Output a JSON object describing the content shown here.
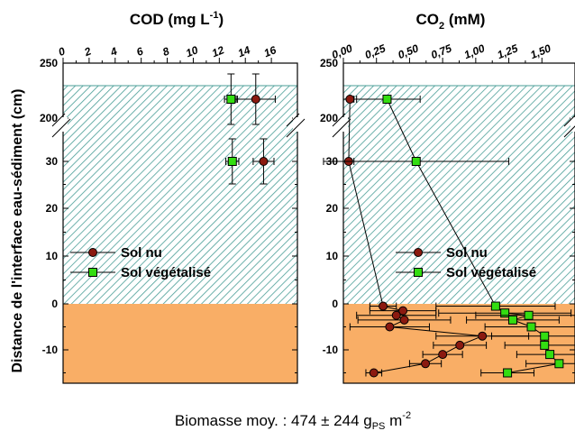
{
  "chart_data": [
    {
      "type": "scatter",
      "title": "COD (mg L",
      "title_sup": "-1",
      "title_end": ")",
      "x_ticks": [
        "0",
        "2",
        "4",
        "6",
        "8",
        "10",
        "12",
        "14",
        "16"
      ],
      "xlim": [
        0,
        18
      ],
      "y_ticks": [
        "250",
        "200",
        "30",
        "20",
        "10",
        "0",
        "-10"
      ],
      "ylabel": "Distance de l'interface eau-sédiment (cm)",
      "legend": {
        "placement": "center-left",
        "entries": [
          "Sol nu",
          "Sol végétalisé"
        ]
      },
      "series": [
        {
          "name": "Sol nu",
          "color": "#8b1a10",
          "points": [
            {
              "y": "220",
              "x": 14.8,
              "xerr": 1.5,
              "yerr_up": 15,
              "yerr_down": 15
            },
            {
              "y": "30",
              "x": 15.4,
              "xerr": 0.8,
              "yerr_up": 5,
              "yerr_down": 5
            }
          ]
        },
        {
          "name": "Sol végétalisé",
          "color": "#33dd11",
          "points": [
            {
              "y": "220",
              "x": 12.9,
              "xerr": 0.5,
              "yerr_up": 15,
              "yerr_down": 15
            },
            {
              "y": "30",
              "x": 13.0,
              "xerr": 0.5,
              "yerr_up": 5,
              "yerr_down": 5
            }
          ]
        }
      ]
    },
    {
      "type": "scatter",
      "title": "CO",
      "title_sub": "2",
      "title_end": " (mM)",
      "x_ticks": [
        "0,00",
        "0,25",
        "0,50",
        "0,75",
        "1,00",
        "1,25",
        "1,50"
      ],
      "xlim": [
        0,
        1.75
      ],
      "legend": {
        "placement": "center-right",
        "entries": [
          "Sol nu",
          "Sol végétalisé"
        ]
      },
      "series": [
        {
          "name": "Sol nu",
          "color": "#8b1a10",
          "points": [
            {
              "y": "220",
              "x": 0.05,
              "xerr": 0.05
            },
            {
              "y": "30",
              "x": 0.04,
              "xerr": 0.04
            },
            {
              "y": -0.5,
              "x": 0.3,
              "xerr": 0.1
            },
            {
              "y": -1.5,
              "x": 0.45,
              "xerr": 0.25
            },
            {
              "y": -2.5,
              "x": 0.4,
              "xerr": 0.3
            },
            {
              "y": -3.5,
              "x": 0.46,
              "xerr": 0.35
            },
            {
              "y": -5,
              "x": 0.35,
              "xerr": 0.3
            },
            {
              "y": -7,
              "x": 1.05,
              "xerr": 0.35
            },
            {
              "y": -9,
              "x": 0.88,
              "xerr": 0.2
            },
            {
              "y": -11,
              "x": 0.75,
              "xerr": 0.15
            },
            {
              "y": -13,
              "x": 0.62,
              "xerr": 0.12
            },
            {
              "y": -15,
              "x": 0.23,
              "xerr": 0.06
            }
          ]
        },
        {
          "name": "Sol végétalisé",
          "color": "#33dd11",
          "points": [
            {
              "y": "220",
              "x": 0.33,
              "xerr": 0.25
            },
            {
              "y": "30",
              "x": 0.55,
              "xerr": 0.7
            },
            {
              "y": -0.5,
              "x": 1.15,
              "xerr": 0.45
            },
            {
              "y": -2,
              "x": 1.22,
              "xerr": 0.5
            },
            {
              "y": -2.5,
              "x": 1.4,
              "xerr": 0.4
            },
            {
              "y": -3.5,
              "x": 1.28,
              "xerr": 0.35
            },
            {
              "y": -5,
              "x": 1.42,
              "xerr": 0.35
            },
            {
              "y": -7,
              "x": 1.52,
              "xerr": 0.4
            },
            {
              "y": -9,
              "x": 1.52,
              "xerr": 0.3
            },
            {
              "y": -11,
              "x": 1.56,
              "xerr": 0.25
            },
            {
              "y": -13,
              "x": 1.63,
              "xerr": 0.25
            },
            {
              "y": -15,
              "x": 1.24,
              "xerr": 0.2
            }
          ]
        }
      ]
    }
  ],
  "footer": {
    "text": "Biomasse moy. : 474 ± 244 g",
    "sub": "PS",
    "text2": " m",
    "sup": "-2"
  },
  "colors": {
    "water": "#ffffff",
    "hatch": "#4a9e97",
    "sediment": "#f9ae66"
  }
}
